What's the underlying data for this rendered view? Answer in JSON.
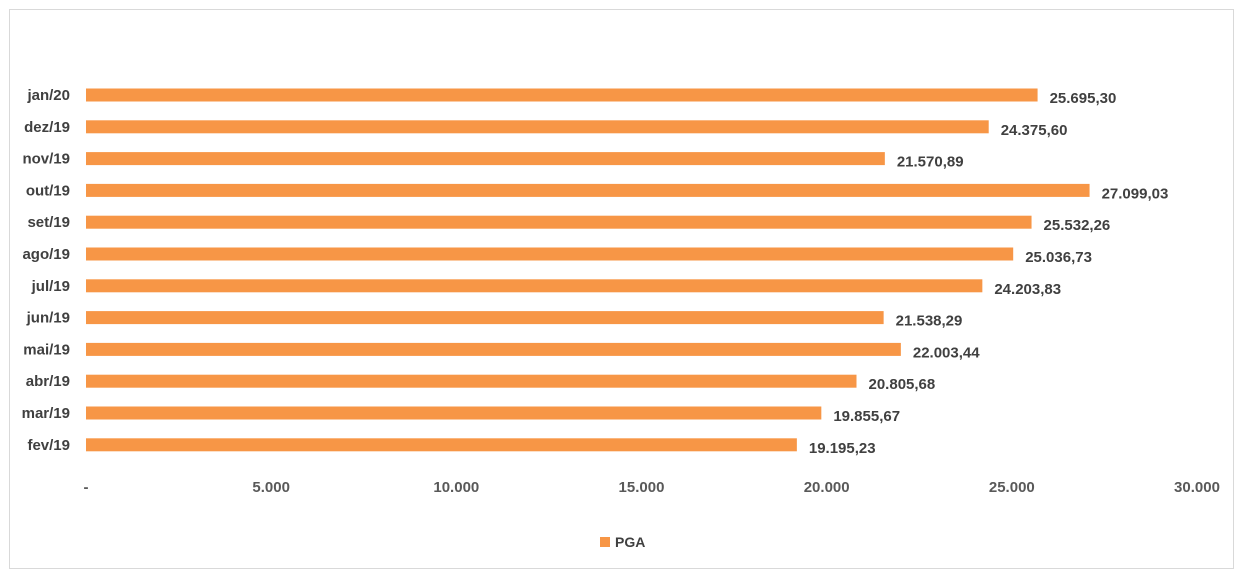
{
  "chart_data": {
    "type": "bar",
    "orientation": "horizontal",
    "categories": [
      "jan/20",
      "dez/19",
      "nov/19",
      "out/19",
      "set/19",
      "ago/19",
      "jul/19",
      "jun/19",
      "mai/19",
      "abr/19",
      "mar/19",
      "fev/19"
    ],
    "series": [
      {
        "name": "PGA",
        "color": "#f79646",
        "values": [
          25695.3,
          24375.6,
          21570.89,
          27099.03,
          25532.26,
          25036.73,
          24203.83,
          21538.29,
          22003.44,
          20805.68,
          19855.67,
          19195.23
        ],
        "value_labels": [
          "25.695,30",
          "24.375,60",
          "21.570,89",
          "27.099,03",
          "25.532,26",
          "25.036,73",
          "24.203,83",
          "21.538,29",
          "22.003,44",
          "20.805,68",
          "19.855,67",
          "19.195,23"
        ]
      }
    ],
    "xlim": [
      0,
      30000
    ],
    "x_ticks": [
      0,
      5000,
      10000,
      15000,
      20000,
      25000,
      30000
    ],
    "x_tick_labels": [
      "-",
      "5.000",
      "10.000",
      "15.000",
      "20.000",
      "25.000",
      "30.000"
    ],
    "grid": false,
    "legend_position": "bottom"
  }
}
